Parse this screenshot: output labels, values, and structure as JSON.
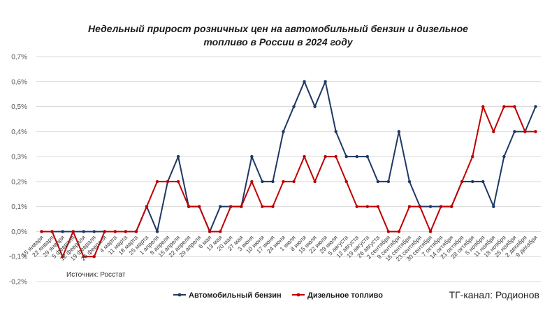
{
  "chart_data": {
    "type": "line",
    "title_lines": [
      "Недельный прирост розничных цен на автомобильный бензин и дизельное",
      "топливо в России в 2024 году"
    ],
    "ylim": [
      -0.2,
      0.7
    ],
    "yticks": [
      -0.2,
      -0.1,
      0.0,
      0.1,
      0.2,
      0.3,
      0.4,
      0.5,
      0.6,
      0.7
    ],
    "ytick_labels": [
      "-0,2%",
      "-0,1%",
      "0,0%",
      "0,1%",
      "0,2%",
      "0,3%",
      "0,4%",
      "0,5%",
      "0,6%",
      "0,7%"
    ],
    "grid": true,
    "legend_position": "bottom",
    "categories": [
      "15 января",
      "22 января",
      "29 января",
      "5 февраля",
      "12 февраля",
      "19 февраля",
      "26 февраля",
      "4 марта",
      "11 марта",
      "18 марта",
      "25 марта",
      "1 апреля",
      "8 апреля",
      "15 апреля",
      "22 апреля",
      "29 апреля",
      "6 мая",
      "13 мая",
      "20 мая",
      "27 мая",
      "3 июня",
      "10 июня",
      "17 июня",
      "24 июня",
      "1 июля",
      "8 июля",
      "15 июля",
      "22 июля",
      "29 июля",
      "5 августа",
      "12 августа",
      "19 августа",
      "26 августа",
      "2 сентября",
      "9 сентября",
      "16 сентября",
      "23 сентября",
      "30 сентября",
      "7 октября",
      "14 октября",
      "21 октября",
      "28 октября",
      "5 ноября",
      "11 ноября",
      "18 ноября",
      "25 ноября",
      "2 декабря",
      "9 декабря"
    ],
    "series": [
      {
        "name": "Автомобильный бензин",
        "color": "#1f3864",
        "values": [
          0,
          0,
          0,
          0,
          0,
          0,
          0,
          0,
          0,
          0,
          0.1,
          0,
          0.2,
          0.3,
          0.1,
          0.1,
          0,
          0.1,
          0.1,
          0.1,
          0.3,
          0.2,
          0.2,
          0.4,
          0.5,
          0.6,
          0.5,
          0.6,
          0.4,
          0.3,
          0.3,
          0.3,
          0.2,
          0.2,
          0.4,
          0.2,
          0.1,
          0.1,
          0.1,
          0.1,
          0.2,
          0.2,
          0.2,
          0.1,
          0.3,
          0.4,
          0.4,
          0.5
        ]
      },
      {
        "name": "Дизельное топливо",
        "color": "#c00000",
        "values": [
          0,
          0,
          -0.1,
          0,
          -0.1,
          -0.1,
          0,
          0,
          0,
          0,
          0.1,
          0.2,
          0.2,
          0.2,
          0.1,
          0.1,
          0,
          0,
          0.1,
          0.1,
          0.2,
          0.1,
          0.1,
          0.2,
          0.2,
          0.3,
          0.2,
          0.3,
          0.3,
          0.2,
          0.1,
          0.1,
          0.1,
          0,
          0,
          0.1,
          0.1,
          0,
          0.1,
          0.1,
          0.2,
          0.3,
          0.5,
          0.4,
          0.5,
          0.5,
          0.4,
          0.4
        ]
      }
    ]
  },
  "source_text": "Источник: Росстат",
  "channel_text": "ТГ-канал: Родионов"
}
